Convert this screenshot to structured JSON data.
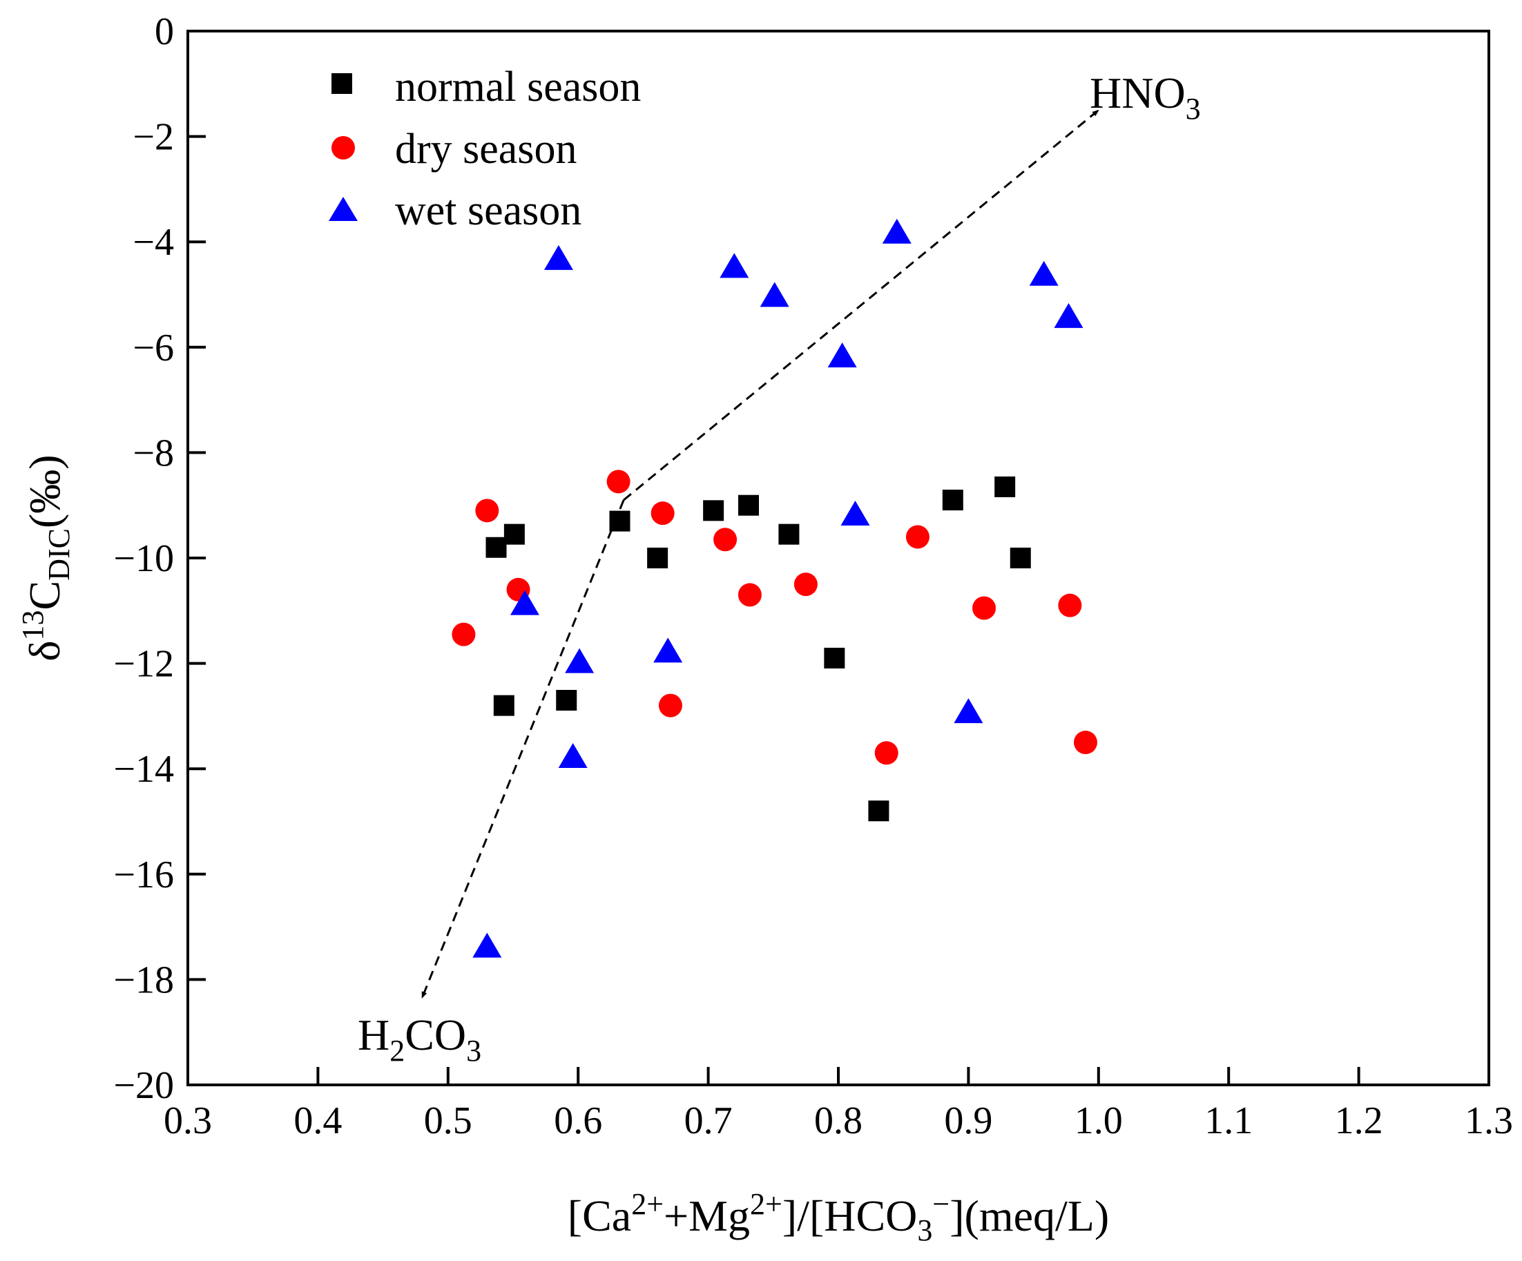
{
  "chart_data": {
    "type": "scatter",
    "title": "",
    "xlabel": {
      "prefix": "[Ca",
      "sup1": "2+",
      "mid": "+Mg",
      "sup2": "2+",
      "mid2": "]/[HCO",
      "sub": "3",
      "sup3": "−",
      "suffix": "](meq/L)"
    },
    "ylabel": {
      "prefix": "δ",
      "sup": "13",
      "main": "C",
      "sub": "DIC",
      "suffix": "(‰)"
    },
    "xlim": [
      0.3,
      1.3
    ],
    "ylim": [
      -20,
      0
    ],
    "xticks": [
      "0.3",
      "0.4",
      "0.5",
      "0.6",
      "0.7",
      "0.8",
      "0.9",
      "1.0",
      "1.1",
      "1.2",
      "1.3"
    ],
    "yticks": [
      "0",
      "−2",
      "−4",
      "−6",
      "−8",
      "−10",
      "−12",
      "−14",
      "−16",
      "−18",
      "−20"
    ],
    "legend_position": "top-left",
    "series": [
      {
        "name": "normal season",
        "marker": "square",
        "color": "#000000",
        "points": [
          [
            0.537,
            -9.8
          ],
          [
            0.551,
            -9.55
          ],
          [
            0.543,
            -12.8
          ],
          [
            0.591,
            -12.7
          ],
          [
            0.632,
            -9.3
          ],
          [
            0.661,
            -10.0
          ],
          [
            0.704,
            -9.1
          ],
          [
            0.731,
            -9.0
          ],
          [
            0.762,
            -9.55
          ],
          [
            0.797,
            -11.9
          ],
          [
            0.831,
            -14.8
          ],
          [
            0.888,
            -8.9
          ],
          [
            0.928,
            -8.65
          ],
          [
            0.94,
            -10.0
          ]
        ]
      },
      {
        "name": "dry season",
        "marker": "circle",
        "color": "#ff0000",
        "points": [
          [
            0.512,
            -11.45
          ],
          [
            0.53,
            -9.1
          ],
          [
            0.554,
            -10.6
          ],
          [
            0.631,
            -8.55
          ],
          [
            0.665,
            -9.15
          ],
          [
            0.671,
            -12.8
          ],
          [
            0.713,
            -9.65
          ],
          [
            0.732,
            -10.7
          ],
          [
            0.775,
            -10.5
          ],
          [
            0.837,
            -13.7
          ],
          [
            0.861,
            -9.6
          ],
          [
            0.912,
            -10.95
          ],
          [
            0.978,
            -10.9
          ],
          [
            0.99,
            -13.5
          ]
        ]
      },
      {
        "name": "wet season",
        "marker": "triangle",
        "color": "#0000ff",
        "points": [
          [
            0.53,
            -17.4
          ],
          [
            0.559,
            -10.9
          ],
          [
            0.585,
            -4.35
          ],
          [
            0.601,
            -12.0
          ],
          [
            0.596,
            -13.8
          ],
          [
            0.669,
            -11.8
          ],
          [
            0.72,
            -4.5
          ],
          [
            0.751,
            -5.05
          ],
          [
            0.803,
            -6.2
          ],
          [
            0.813,
            -9.2
          ],
          [
            0.845,
            -3.85
          ],
          [
            0.9,
            -12.95
          ],
          [
            0.958,
            -4.65
          ],
          [
            0.977,
            -5.45
          ]
        ]
      }
    ],
    "annotations": {
      "arrow": {
        "from": [
          0.635,
          -8.9
        ],
        "to_upper": [
          1.0,
          -1.5
        ],
        "to_lower": [
          0.48,
          -18.35
        ],
        "style": "dashed double-headed"
      },
      "upper_label": {
        "main": "HNO",
        "sub": "3"
      },
      "lower_label": {
        "main1": "H",
        "sub1": "2",
        "main2": "CO",
        "sub2": "3"
      }
    }
  }
}
